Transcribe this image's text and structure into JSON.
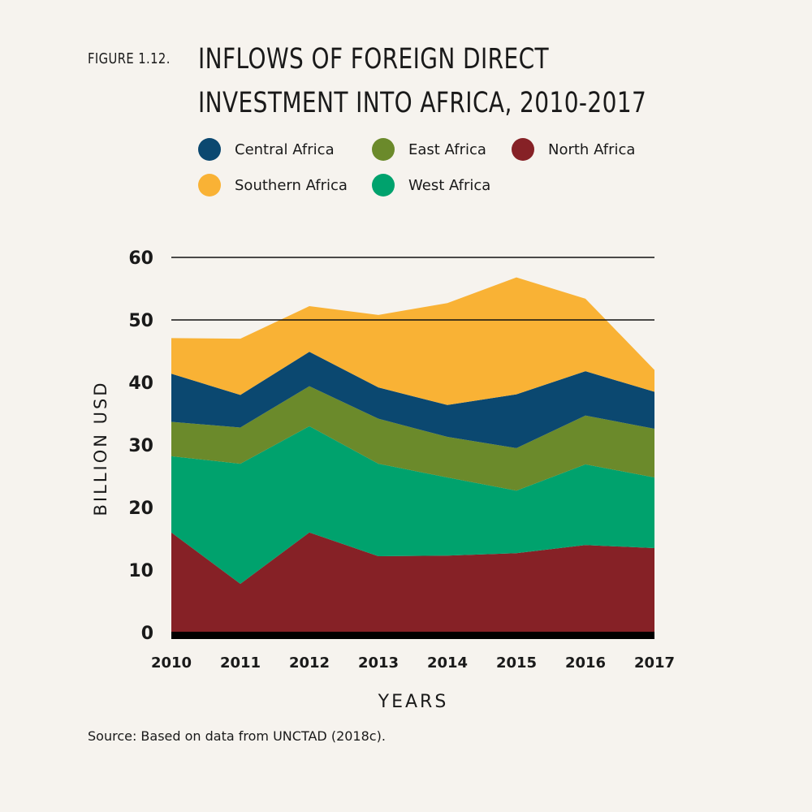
{
  "figure_label": "FIGURE 1.12.",
  "title_lines": [
    "INFLOWS OF FOREIGN DIRECT",
    "INVESTMENT INTO AFRICA, 2010-2017"
  ],
  "source": "Source: Based on data from UNCTAD (2018c).",
  "chart_data": {
    "type": "area",
    "stacked": true,
    "x": [
      "2010",
      "2011",
      "2012",
      "2013",
      "2014",
      "2015",
      "2016",
      "2017"
    ],
    "xlabel": "YEARS",
    "ylabel": "BILLION USD",
    "ylim": [
      0,
      60
    ],
    "yticks": [
      0,
      10,
      20,
      30,
      40,
      50,
      60
    ],
    "gridlines": [
      50,
      60
    ],
    "legend_position": "top",
    "series": [
      {
        "name": "North Africa",
        "color": "#862126",
        "values": [
          16.0,
          7.8,
          16.0,
          12.2,
          12.3,
          12.7,
          14.0,
          13.5
        ]
      },
      {
        "name": "West Africa",
        "color": "#00a26d",
        "values": [
          12.2,
          19.2,
          17.0,
          14.8,
          12.5,
          10.0,
          12.9,
          11.3
        ]
      },
      {
        "name": "East Africa",
        "color": "#6b8a2b",
        "values": [
          5.5,
          5.8,
          6.4,
          7.2,
          6.5,
          6.8,
          7.8,
          7.8
        ]
      },
      {
        "name": "Central Africa",
        "color": "#0b4870",
        "values": [
          7.7,
          5.2,
          5.5,
          5.0,
          5.1,
          8.6,
          7.1,
          5.9
        ]
      },
      {
        "name": "Southern Africa",
        "color": "#f9b235",
        "values": [
          5.7,
          9.0,
          7.3,
          11.6,
          16.3,
          18.7,
          11.6,
          3.5
        ]
      }
    ]
  },
  "legend_order": [
    "Central Africa",
    "East Africa",
    "North Africa",
    "Southern Africa",
    "West Africa"
  ]
}
